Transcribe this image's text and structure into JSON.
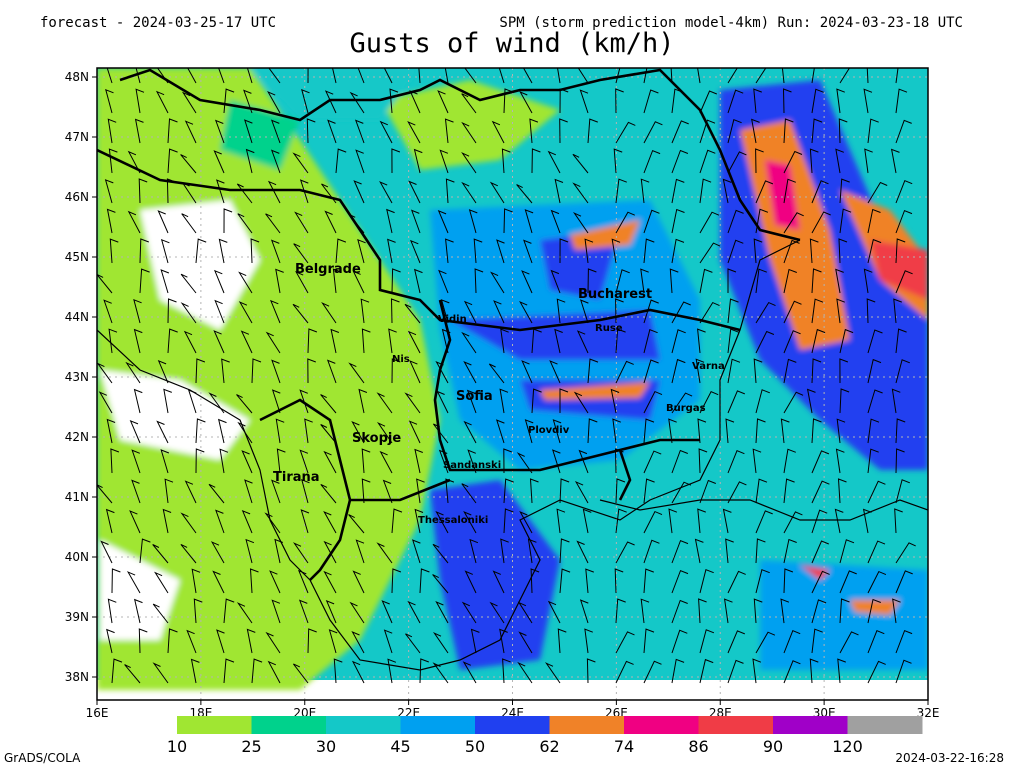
{
  "header": {
    "left": "forecast - 2024-03-25-17 UTC",
    "right": "SPM (storm prediction model-4km) Run: 2024-03-23-18 UTC",
    "title": "Gusts of wind (km/h)"
  },
  "map": {
    "lat_labels": [
      "48N",
      "47N",
      "46N",
      "45N",
      "44N",
      "43N",
      "42N",
      "41N",
      "40N",
      "39N",
      "38N"
    ],
    "lon_labels": [
      "16E",
      "18E",
      "20E",
      "22E",
      "24E",
      "26E",
      "28E",
      "30E",
      "32E"
    ],
    "cities": [
      "Belgrade",
      "Bucharest",
      "Vidin",
      "Ruse",
      "Nis",
      "Varna",
      "Sofia",
      "Burgas",
      "Skopje",
      "Plovdiv",
      "Sandanski",
      "Tirana",
      "Thessaloniki"
    ]
  },
  "legend": {
    "labels": [
      "10",
      "25",
      "30",
      "45",
      "50",
      "62",
      "74",
      "86",
      "90",
      "120"
    ],
    "colors": [
      "#a0e632",
      "#00d28c",
      "#14c8c8",
      "#00a0f0",
      "#2040f0",
      "#f08228",
      "#f00082",
      "#f03c46",
      "#a000c8",
      "#a0a0a0"
    ]
  },
  "footer": {
    "left": "GrADS/COLA",
    "right": "2024-03-22-16:28"
  }
}
